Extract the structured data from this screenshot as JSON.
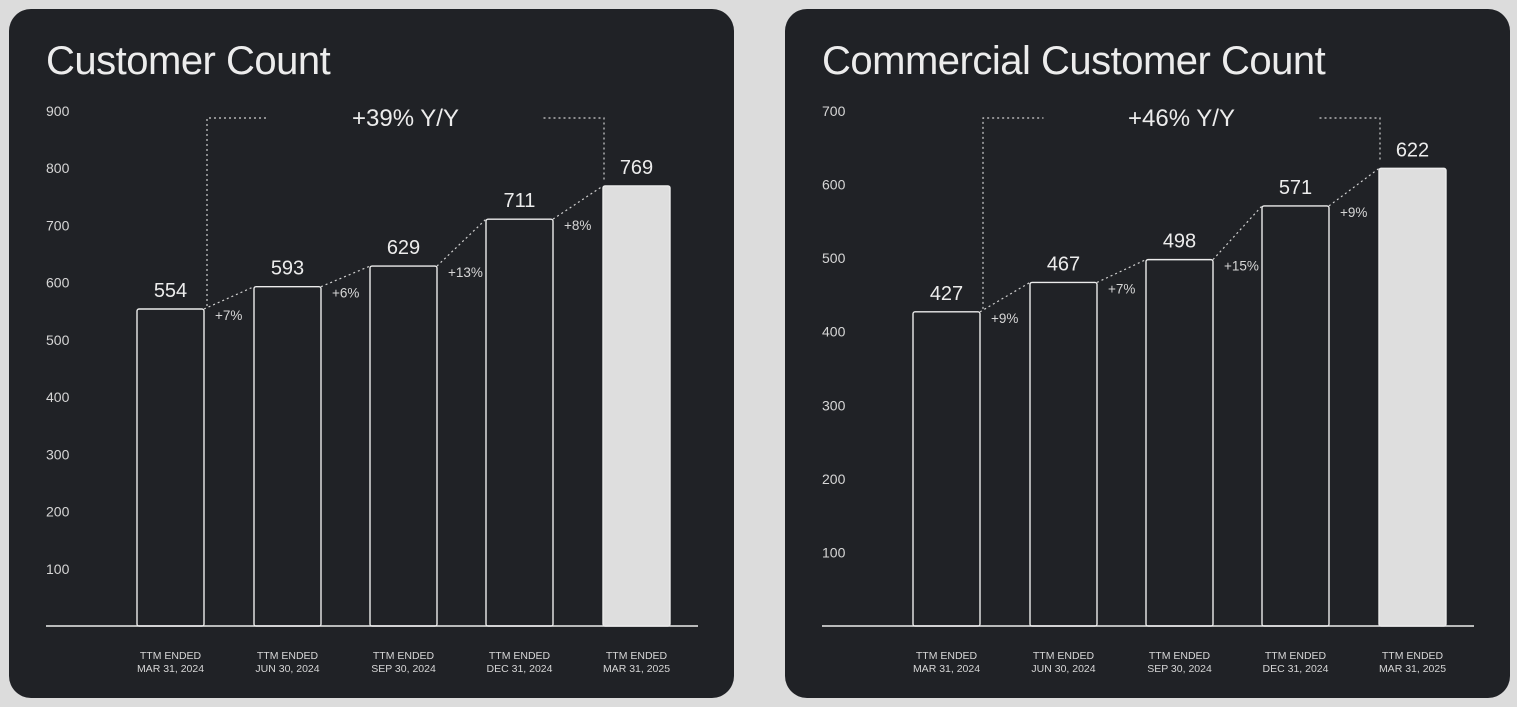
{
  "chart_data": [
    {
      "type": "bar",
      "title": "Customer Count",
      "categories": [
        [
          "TTM ENDED",
          "MAR 31, 2024"
        ],
        [
          "TTM ENDED",
          "JUN 30, 2024"
        ],
        [
          "TTM ENDED",
          "SEP 30, 2024"
        ],
        [
          "TTM ENDED",
          "DEC 31, 2024"
        ],
        [
          "TTM ENDED",
          "MAR 31, 2025"
        ]
      ],
      "values": [
        554,
        593,
        629,
        711,
        769
      ],
      "value_labels": [
        "554",
        "593",
        "629",
        "711",
        "769"
      ],
      "growth_labels": [
        "+7%",
        "+6%",
        "+13%",
        "+8%"
      ],
      "yoy_label": "+39% Y/Y",
      "ylim": [
        0,
        900
      ],
      "yticks": [
        100,
        200,
        300,
        400,
        500,
        600,
        700,
        800,
        900
      ],
      "highlight_index": 4,
      "grid": false,
      "colors": {
        "bar_outline": "#ececec",
        "highlight_fill": "#dedede",
        "background": "#202226"
      }
    },
    {
      "type": "bar",
      "title": "Commercial Customer Count",
      "categories": [
        [
          "TTM ENDED",
          "MAR 31, 2024"
        ],
        [
          "TTM ENDED",
          "JUN 30, 2024"
        ],
        [
          "TTM ENDED",
          "SEP 30, 2024"
        ],
        [
          "TTM ENDED",
          "DEC 31, 2024"
        ],
        [
          "TTM ENDED",
          "MAR 31, 2025"
        ]
      ],
      "values": [
        427,
        467,
        498,
        571,
        622
      ],
      "value_labels": [
        "427",
        "467",
        "498",
        "571",
        "622"
      ],
      "growth_labels": [
        "+9%",
        "+7%",
        "+15%",
        "+9%"
      ],
      "yoy_label": "+46% Y/Y",
      "ylim": [
        0,
        700
      ],
      "yticks": [
        100,
        200,
        300,
        400,
        500,
        600,
        700
      ],
      "highlight_index": 4,
      "grid": false,
      "colors": {
        "bar_outline": "#ececec",
        "highlight_fill": "#dedede",
        "background": "#202226"
      }
    }
  ]
}
